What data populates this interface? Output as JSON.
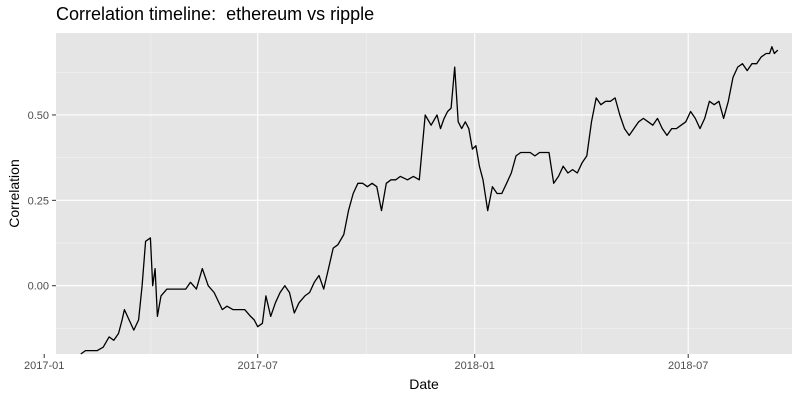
{
  "chart_data": {
    "type": "line",
    "title": "Correlation timeline:  ethereum vs ripple",
    "xlabel": "Date",
    "ylabel": "Correlation",
    "xlim": [
      "2017-01-11",
      "2018-09-27"
    ],
    "ylim": [
      -0.2,
      0.74
    ],
    "x_ticks": [
      "2017-01-01",
      "2017-07-01",
      "2018-01-01",
      "2018-07-01"
    ],
    "x_tick_labels": [
      "2017-01",
      "2017-07",
      "2018-01",
      "2018-07"
    ],
    "y_ticks": [
      0.0,
      0.25,
      0.5
    ],
    "y_tick_labels": [
      "0.00",
      "0.25",
      "0.50"
    ],
    "grid": true,
    "background": "#e5e5e5",
    "line_color": "#000000",
    "series": [
      {
        "x": [
          "2017-02-01",
          "2017-02-05",
          "2017-02-10",
          "2017-02-15",
          "2017-02-20",
          "2017-02-25",
          "2017-03-01",
          "2017-03-05",
          "2017-03-08",
          "2017-03-10",
          "2017-03-14",
          "2017-03-18",
          "2017-03-22",
          "2017-03-25",
          "2017-03-28",
          "2017-04-01",
          "2017-04-03",
          "2017-04-05",
          "2017-04-07",
          "2017-04-10",
          "2017-04-15",
          "2017-04-20",
          "2017-04-25",
          "2017-05-01",
          "2017-05-05",
          "2017-05-10",
          "2017-05-15",
          "2017-05-20",
          "2017-05-25",
          "2017-06-01",
          "2017-06-05",
          "2017-06-10",
          "2017-06-15",
          "2017-06-20",
          "2017-06-25",
          "2017-06-28",
          "2017-07-01",
          "2017-07-05",
          "2017-07-08",
          "2017-07-12",
          "2017-07-16",
          "2017-07-20",
          "2017-07-24",
          "2017-07-28",
          "2017-08-01",
          "2017-08-05",
          "2017-08-10",
          "2017-08-14",
          "2017-08-18",
          "2017-08-22",
          "2017-08-26",
          "2017-08-30",
          "2017-09-03",
          "2017-09-07",
          "2017-09-12",
          "2017-09-16",
          "2017-09-20",
          "2017-09-24",
          "2017-09-28",
          "2017-10-02",
          "2017-10-06",
          "2017-10-10",
          "2017-10-14",
          "2017-10-18",
          "2017-10-22",
          "2017-10-26",
          "2017-10-30",
          "2017-11-05",
          "2017-11-10",
          "2017-11-15",
          "2017-11-20",
          "2017-11-25",
          "2017-11-30",
          "2017-12-03",
          "2017-12-06",
          "2017-12-09",
          "2017-12-12",
          "2017-12-15",
          "2017-12-18",
          "2017-12-21",
          "2017-12-24",
          "2017-12-27",
          "2017-12-30",
          "2018-01-02",
          "2018-01-05",
          "2018-01-08",
          "2018-01-12",
          "2018-01-16",
          "2018-01-20",
          "2018-01-24",
          "2018-01-28",
          "2018-02-01",
          "2018-02-05",
          "2018-02-09",
          "2018-02-13",
          "2018-02-17",
          "2018-02-21",
          "2018-02-25",
          "2018-03-01",
          "2018-03-05",
          "2018-03-09",
          "2018-03-13",
          "2018-03-17",
          "2018-03-21",
          "2018-03-25",
          "2018-03-29",
          "2018-04-02",
          "2018-04-06",
          "2018-04-10",
          "2018-04-14",
          "2018-04-18",
          "2018-04-22",
          "2018-04-26",
          "2018-04-30",
          "2018-05-04",
          "2018-05-08",
          "2018-05-12",
          "2018-05-16",
          "2018-05-20",
          "2018-05-24",
          "2018-05-28",
          "2018-06-01",
          "2018-06-05",
          "2018-06-09",
          "2018-06-13",
          "2018-06-17",
          "2018-06-21",
          "2018-06-25",
          "2018-06-29",
          "2018-07-03",
          "2018-07-07",
          "2018-07-11",
          "2018-07-15",
          "2018-07-19",
          "2018-07-23",
          "2018-07-27",
          "2018-07-31",
          "2018-08-04",
          "2018-08-08",
          "2018-08-12",
          "2018-08-16",
          "2018-08-20",
          "2018-08-24",
          "2018-08-28",
          "2018-09-01",
          "2018-09-05",
          "2018-09-08",
          "2018-09-10",
          "2018-09-12",
          "2018-09-15"
        ],
        "y": [
          -0.2,
          -0.19,
          -0.19,
          -0.19,
          -0.18,
          -0.15,
          -0.16,
          -0.14,
          -0.1,
          -0.07,
          -0.1,
          -0.13,
          -0.1,
          0.0,
          0.13,
          0.14,
          0.0,
          0.05,
          -0.09,
          -0.03,
          -0.01,
          -0.01,
          -0.01,
          -0.01,
          0.01,
          -0.01,
          0.05,
          0.0,
          -0.02,
          -0.07,
          -0.06,
          -0.07,
          -0.07,
          -0.07,
          -0.09,
          -0.1,
          -0.12,
          -0.11,
          -0.03,
          -0.09,
          -0.05,
          -0.02,
          0.0,
          -0.02,
          -0.08,
          -0.05,
          -0.03,
          -0.02,
          0.01,
          0.03,
          -0.01,
          0.05,
          0.11,
          0.12,
          0.15,
          0.22,
          0.27,
          0.3,
          0.3,
          0.29,
          0.3,
          0.29,
          0.22,
          0.3,
          0.31,
          0.31,
          0.32,
          0.31,
          0.32,
          0.31,
          0.5,
          0.47,
          0.5,
          0.46,
          0.49,
          0.51,
          0.52,
          0.64,
          0.48,
          0.46,
          0.48,
          0.46,
          0.4,
          0.41,
          0.35,
          0.31,
          0.22,
          0.29,
          0.27,
          0.27,
          0.3,
          0.33,
          0.38,
          0.39,
          0.39,
          0.39,
          0.38,
          0.39,
          0.39,
          0.39,
          0.3,
          0.32,
          0.35,
          0.33,
          0.34,
          0.33,
          0.36,
          0.38,
          0.48,
          0.55,
          0.53,
          0.54,
          0.54,
          0.55,
          0.5,
          0.46,
          0.44,
          0.46,
          0.48,
          0.49,
          0.48,
          0.47,
          0.49,
          0.46,
          0.44,
          0.46,
          0.46,
          0.47,
          0.48,
          0.51,
          0.49,
          0.46,
          0.49,
          0.54,
          0.53,
          0.54,
          0.49,
          0.54,
          0.61,
          0.64,
          0.65,
          0.63,
          0.65,
          0.65,
          0.67,
          0.68,
          0.68,
          0.7,
          0.68,
          0.69
        ]
      }
    ]
  }
}
